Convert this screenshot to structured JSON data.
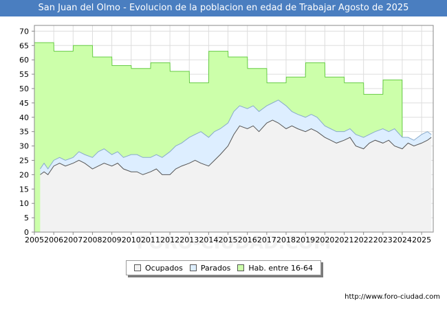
{
  "chart_data": {
    "type": "area",
    "title": "San Juan del Olmo - Evolucion de la poblacion en edad de Trabajar Agosto de 2025",
    "xlabel": "",
    "ylabel": "",
    "xlim": [
      2005,
      2025.6
    ],
    "ylim": [
      0,
      72
    ],
    "grid": true,
    "x_ticks": [
      "2005",
      "2006",
      "2007",
      "2008",
      "2009",
      "2010",
      "2011",
      "2012",
      "2013",
      "2014",
      "2015",
      "2016",
      "2017",
      "2018",
      "2019",
      "2020",
      "2021",
      "2022",
      "2023",
      "2024",
      "2025"
    ],
    "y_ticks": [
      0,
      5,
      10,
      15,
      20,
      25,
      30,
      35,
      40,
      45,
      50,
      55,
      60,
      65,
      70
    ],
    "legend_position": "bottom",
    "series": [
      {
        "name": "Hab. entre 16-64",
        "color": "#ccffaa",
        "line_color": "#66cc44",
        "values": [
          [
            2005.0,
            66
          ],
          [
            2006.0,
            66
          ],
          [
            2006.01,
            63
          ],
          [
            2007.0,
            63
          ],
          [
            2007.01,
            65
          ],
          [
            2008.0,
            65
          ],
          [
            2008.01,
            61
          ],
          [
            2009.0,
            61
          ],
          [
            2009.01,
            58
          ],
          [
            2010.0,
            58
          ],
          [
            2010.01,
            57
          ],
          [
            2011.0,
            57
          ],
          [
            2011.01,
            59
          ],
          [
            2012.0,
            59
          ],
          [
            2012.01,
            56
          ],
          [
            2013.0,
            56
          ],
          [
            2013.01,
            52
          ],
          [
            2014.0,
            52
          ],
          [
            2014.01,
            63
          ],
          [
            2015.0,
            63
          ],
          [
            2015.01,
            61
          ],
          [
            2016.0,
            61
          ],
          [
            2016.01,
            57
          ],
          [
            2017.0,
            57
          ],
          [
            2017.01,
            52
          ],
          [
            2018.0,
            52
          ],
          [
            2018.01,
            54
          ],
          [
            2019.0,
            54
          ],
          [
            2019.01,
            59
          ],
          [
            2020.0,
            59
          ],
          [
            2020.01,
            54
          ],
          [
            2021.0,
            54
          ],
          [
            2021.01,
            52
          ],
          [
            2022.0,
            52
          ],
          [
            2022.01,
            48
          ],
          [
            2023.0,
            48
          ],
          [
            2023.01,
            53
          ],
          [
            2023.99,
            53
          ],
          [
            2024.0,
            28
          ]
        ]
      },
      {
        "name": "Parados",
        "color": "#ddeeff",
        "line_color": "#88aacc",
        "values": [
          [
            2005.3,
            22
          ],
          [
            2005.5,
            24
          ],
          [
            2005.7,
            22
          ],
          [
            2006.0,
            25
          ],
          [
            2006.3,
            26
          ],
          [
            2006.6,
            25
          ],
          [
            2007.0,
            26
          ],
          [
            2007.3,
            28
          ],
          [
            2007.6,
            27
          ],
          [
            2008.0,
            26
          ],
          [
            2008.3,
            28
          ],
          [
            2008.6,
            29
          ],
          [
            2009.0,
            27
          ],
          [
            2009.3,
            28
          ],
          [
            2009.6,
            26
          ],
          [
            2010.0,
            27
          ],
          [
            2010.3,
            27
          ],
          [
            2010.6,
            26
          ],
          [
            2011.0,
            26
          ],
          [
            2011.3,
            27
          ],
          [
            2011.6,
            26
          ],
          [
            2012.0,
            28
          ],
          [
            2012.3,
            30
          ],
          [
            2012.6,
            31
          ],
          [
            2013.0,
            33
          ],
          [
            2013.3,
            34
          ],
          [
            2013.6,
            35
          ],
          [
            2014.0,
            33
          ],
          [
            2014.3,
            35
          ],
          [
            2014.6,
            36
          ],
          [
            2015.0,
            38
          ],
          [
            2015.3,
            42
          ],
          [
            2015.6,
            44
          ],
          [
            2016.0,
            43
          ],
          [
            2016.3,
            44
          ],
          [
            2016.6,
            42
          ],
          [
            2017.0,
            44
          ],
          [
            2017.3,
            45
          ],
          [
            2017.6,
            46
          ],
          [
            2018.0,
            44
          ],
          [
            2018.3,
            42
          ],
          [
            2018.6,
            41
          ],
          [
            2019.0,
            40
          ],
          [
            2019.3,
            41
          ],
          [
            2019.6,
            40
          ],
          [
            2020.0,
            37
          ],
          [
            2020.3,
            36
          ],
          [
            2020.6,
            35
          ],
          [
            2021.0,
            35
          ],
          [
            2021.3,
            36
          ],
          [
            2021.6,
            34
          ],
          [
            2022.0,
            33
          ],
          [
            2022.3,
            34
          ],
          [
            2022.6,
            35
          ],
          [
            2023.0,
            36
          ],
          [
            2023.3,
            35
          ],
          [
            2023.6,
            36
          ],
          [
            2024.0,
            33
          ],
          [
            2024.3,
            33
          ],
          [
            2024.6,
            32
          ],
          [
            2025.0,
            34
          ],
          [
            2025.3,
            35
          ],
          [
            2025.5,
            34
          ]
        ]
      },
      {
        "name": "Ocupados",
        "color": "#f2f2f2",
        "line_color": "#555555",
        "values": [
          [
            2005.3,
            20
          ],
          [
            2005.5,
            21
          ],
          [
            2005.7,
            20
          ],
          [
            2006.0,
            23
          ],
          [
            2006.3,
            24
          ],
          [
            2006.6,
            23
          ],
          [
            2007.0,
            24
          ],
          [
            2007.3,
            25
          ],
          [
            2007.6,
            24
          ],
          [
            2008.0,
            22
          ],
          [
            2008.3,
            23
          ],
          [
            2008.6,
            24
          ],
          [
            2009.0,
            23
          ],
          [
            2009.3,
            24
          ],
          [
            2009.6,
            22
          ],
          [
            2010.0,
            21
          ],
          [
            2010.3,
            21
          ],
          [
            2010.6,
            20
          ],
          [
            2011.0,
            21
          ],
          [
            2011.3,
            22
          ],
          [
            2011.6,
            20
          ],
          [
            2012.0,
            20
          ],
          [
            2012.3,
            22
          ],
          [
            2012.6,
            23
          ],
          [
            2013.0,
            24
          ],
          [
            2013.3,
            25
          ],
          [
            2013.6,
            24
          ],
          [
            2014.0,
            23
          ],
          [
            2014.3,
            25
          ],
          [
            2014.6,
            27
          ],
          [
            2015.0,
            30
          ],
          [
            2015.3,
            34
          ],
          [
            2015.6,
            37
          ],
          [
            2016.0,
            36
          ],
          [
            2016.3,
            37
          ],
          [
            2016.6,
            35
          ],
          [
            2017.0,
            38
          ],
          [
            2017.3,
            39
          ],
          [
            2017.6,
            38
          ],
          [
            2018.0,
            36
          ],
          [
            2018.3,
            37
          ],
          [
            2018.6,
            36
          ],
          [
            2019.0,
            35
          ],
          [
            2019.3,
            36
          ],
          [
            2019.6,
            35
          ],
          [
            2020.0,
            33
          ],
          [
            2020.3,
            32
          ],
          [
            2020.6,
            31
          ],
          [
            2021.0,
            32
          ],
          [
            2021.3,
            33
          ],
          [
            2021.6,
            30
          ],
          [
            2022.0,
            29
          ],
          [
            2022.3,
            31
          ],
          [
            2022.6,
            32
          ],
          [
            2023.0,
            31
          ],
          [
            2023.3,
            32
          ],
          [
            2023.6,
            30
          ],
          [
            2024.0,
            29
          ],
          [
            2024.3,
            31
          ],
          [
            2024.6,
            30
          ],
          [
            2025.0,
            31
          ],
          [
            2025.3,
            32
          ],
          [
            2025.5,
            33
          ]
        ]
      }
    ]
  },
  "legend": {
    "items": [
      {
        "label": "Ocupados",
        "color": "#f2f2f2"
      },
      {
        "label": "Parados",
        "color": "#ddeeff"
      },
      {
        "label": "Hab. entre 16-64",
        "color": "#ccffaa"
      }
    ]
  },
  "watermark": "FORO-CIUDAD.COM",
  "source": "http://www.foro-ciudad.com"
}
